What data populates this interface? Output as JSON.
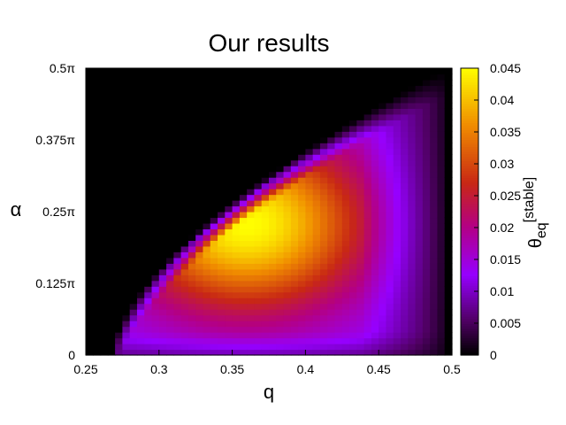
{
  "chart_data": {
    "type": "heatmap",
    "title": "Our results",
    "xlabel": "q",
    "ylabel": "α",
    "colorbar_label": {
      "base": "θ",
      "sub": "eq",
      "sup": "[stable]"
    },
    "xlim": [
      0.25,
      0.5
    ],
    "ylim_label_units": "π",
    "ylim": [
      0,
      0.5
    ],
    "x_ticks": [
      "0.25",
      "0.3",
      "0.35",
      "0.4",
      "0.45",
      "0.5"
    ],
    "y_ticks": [
      "0",
      "0.125π",
      "0.25π",
      "0.375π",
      "0.5π"
    ],
    "colorbar_ticks": [
      "0",
      "0.005",
      "0.01",
      "0.015",
      "0.02",
      "0.025",
      "0.03",
      "0.035",
      "0.04",
      "0.045"
    ],
    "zlim": [
      0,
      0.045
    ],
    "colormap": "gnuplot-hot (black-purple-red-orange-yellow)",
    "grid_resolution": [
      50,
      50
    ],
    "peak": {
      "q": 0.36,
      "alpha_over_pi": 0.23,
      "value": 0.045
    },
    "region_description_lower_boundary": "alpha rises from 0 at q≈0.27 to 0.5π near q≈0.5",
    "data_generated_by_model": true
  }
}
